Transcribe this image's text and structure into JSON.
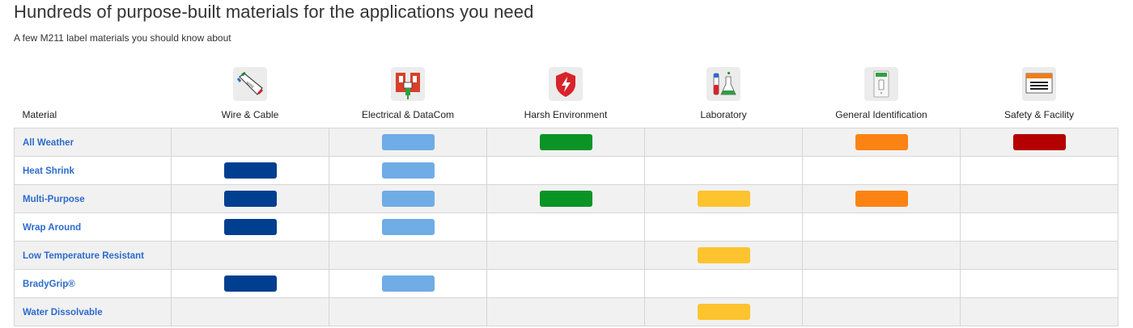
{
  "header": {
    "title": "Hundreds of purpose-built materials for the applications you need",
    "subtitle": "A few M211 label materials you should know about"
  },
  "table": {
    "material_header": "Material",
    "applications": [
      {
        "key": "wire",
        "label": "Wire & Cable",
        "icon": "wire-cable-icon",
        "color": "#003f8f"
      },
      {
        "key": "electrical",
        "label": "Electrical & DataCom",
        "icon": "electrical-datacom-icon",
        "color": "#70ace6"
      },
      {
        "key": "harsh",
        "label": "Harsh Environment",
        "icon": "harsh-environment-icon",
        "color": "#0a9426"
      },
      {
        "key": "lab",
        "label": "Laboratory",
        "icon": "laboratory-icon",
        "color": "#fdc42f"
      },
      {
        "key": "general",
        "label": "General Identification",
        "icon": "general-identification-icon",
        "color": "#fb8314"
      },
      {
        "key": "safety",
        "label": "Safety & Facility",
        "icon": "safety-facility-icon",
        "color": "#b50000"
      }
    ],
    "rows": [
      {
        "material": "All Weather",
        "marks": [
          false,
          true,
          true,
          false,
          true,
          true
        ]
      },
      {
        "material": "Heat Shrink",
        "marks": [
          true,
          true,
          false,
          false,
          false,
          false
        ]
      },
      {
        "material": "Multi-Purpose",
        "marks": [
          true,
          true,
          true,
          true,
          true,
          false
        ]
      },
      {
        "material": "Wrap Around",
        "marks": [
          true,
          true,
          false,
          false,
          false,
          false
        ]
      },
      {
        "material": "Low Temperature Resistant",
        "marks": [
          false,
          false,
          false,
          true,
          false,
          false
        ]
      },
      {
        "material": "BradyGrip®",
        "marks": [
          true,
          true,
          false,
          false,
          false,
          false
        ]
      },
      {
        "material": "Water Dissolvable",
        "marks": [
          false,
          false,
          false,
          true,
          false,
          false
        ]
      }
    ]
  }
}
